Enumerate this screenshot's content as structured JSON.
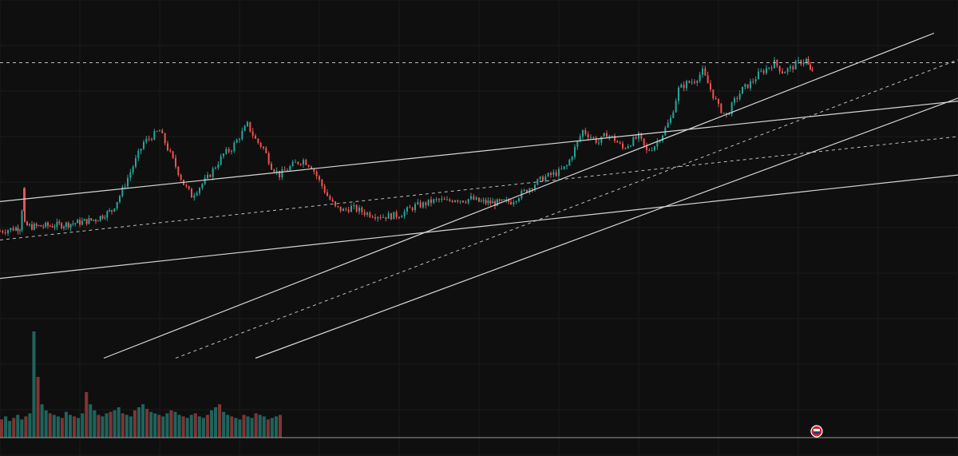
{
  "chart_data": {
    "type": "candlestick",
    "title": "",
    "xlabel": "",
    "ylabel": "",
    "grid": true,
    "legend": "none",
    "y_scale": "log",
    "colors": {
      "background": "#0f0f0f",
      "up": "#26a69a",
      "down": "#ef5350",
      "lines": "#d6d6d6",
      "volume_up": "#1f6e66",
      "volume_down": "#8c3a3a"
    },
    "x_range": [
      0,
      1000
    ],
    "y_range": [
      0,
      100
    ],
    "price_path": [
      [
        0,
        38
      ],
      [
        10,
        38.5
      ],
      [
        20,
        39
      ],
      [
        25,
        39.2
      ],
      [
        30,
        52
      ],
      [
        31,
        40
      ],
      [
        40,
        39.5
      ],
      [
        60,
        39.8
      ],
      [
        80,
        40.2
      ],
      [
        100,
        41
      ],
      [
        120,
        42
      ],
      [
        140,
        45
      ],
      [
        150,
        50
      ],
      [
        160,
        56
      ],
      [
        170,
        62
      ],
      [
        180,
        68
      ],
      [
        190,
        70
      ],
      [
        200,
        72
      ],
      [
        210,
        66
      ],
      [
        220,
        60
      ],
      [
        230,
        54
      ],
      [
        240,
        50
      ],
      [
        250,
        53
      ],
      [
        260,
        56
      ],
      [
        270,
        60
      ],
      [
        280,
        64
      ],
      [
        290,
        66
      ],
      [
        300,
        70
      ],
      [
        310,
        74
      ],
      [
        320,
        69
      ],
      [
        330,
        66
      ],
      [
        340,
        60
      ],
      [
        350,
        57
      ],
      [
        360,
        59
      ],
      [
        370,
        61
      ],
      [
        380,
        62
      ],
      [
        390,
        60
      ],
      [
        400,
        55
      ],
      [
        410,
        50
      ],
      [
        420,
        46
      ],
      [
        430,
        45
      ],
      [
        440,
        46
      ],
      [
        450,
        45
      ],
      [
        460,
        44
      ],
      [
        470,
        43.5
      ],
      [
        480,
        43
      ],
      [
        490,
        43.2
      ],
      [
        500,
        43.5
      ],
      [
        510,
        45
      ],
      [
        520,
        46.5
      ],
      [
        530,
        47
      ],
      [
        540,
        48
      ],
      [
        550,
        48.5
      ],
      [
        560,
        48
      ],
      [
        570,
        49
      ],
      [
        580,
        48.5
      ],
      [
        590,
        49
      ],
      [
        600,
        48
      ],
      [
        620,
        47.5
      ],
      [
        640,
        48
      ],
      [
        650,
        50
      ],
      [
        660,
        52
      ],
      [
        670,
        54
      ],
      [
        680,
        56
      ],
      [
        690,
        57
      ],
      [
        700,
        58
      ],
      [
        710,
        60
      ],
      [
        720,
        66
      ],
      [
        730,
        72
      ],
      [
        740,
        70
      ],
      [
        750,
        68
      ],
      [
        760,
        71
      ],
      [
        770,
        69
      ],
      [
        780,
        66
      ],
      [
        790,
        68
      ],
      [
        800,
        70
      ],
      [
        810,
        65
      ],
      [
        820,
        67
      ],
      [
        830,
        71
      ],
      [
        840,
        76
      ],
      [
        850,
        86
      ],
      [
        860,
        88
      ],
      [
        870,
        89
      ],
      [
        880,
        92
      ],
      [
        890,
        86
      ],
      [
        900,
        80
      ],
      [
        910,
        77
      ],
      [
        920,
        82
      ],
      [
        930,
        86
      ],
      [
        940,
        88
      ],
      [
        950,
        91
      ],
      [
        960,
        93
      ],
      [
        970,
        95
      ],
      [
        980,
        92
      ],
      [
        990,
        93
      ],
      [
        1000,
        95
      ],
      [
        1010,
        96
      ],
      [
        1015,
        92
      ],
      [
        1020,
        93
      ]
    ],
    "volume": [
      12,
      14,
      11,
      13,
      15,
      12,
      14,
      16,
      70,
      40,
      22,
      18,
      16,
      15,
      14,
      13,
      17,
      15,
      14,
      13,
      16,
      30,
      22,
      18,
      15,
      14,
      16,
      17,
      18,
      20,
      16,
      15,
      14,
      18,
      20,
      22,
      19,
      17,
      16,
      15,
      14,
      16,
      18,
      17,
      15,
      14,
      13,
      15,
      16,
      14,
      13,
      15,
      18,
      20,
      22,
      17,
      15,
      14,
      13,
      12,
      15,
      14,
      13,
      16,
      15,
      14,
      12,
      13,
      14,
      15
    ],
    "trendlines": [
      {
        "from": [
          0,
          48
        ],
        "to": [
          1200,
          82
        ],
        "style": "solid"
      },
      {
        "from": [
          0,
          35
        ],
        "to": [
          1200,
          70
        ],
        "style": "dashed"
      },
      {
        "from": [
          0,
          22
        ],
        "to": [
          1200,
          57
        ],
        "style": "solid"
      },
      {
        "from": [
          130,
          -5
        ],
        "to": [
          1170,
          105
        ],
        "style": "solid"
      },
      {
        "from": [
          220,
          -5
        ],
        "to": [
          1200,
          96
        ],
        "style": "dashed"
      },
      {
        "from": [
          320,
          -5
        ],
        "to": [
          1200,
          83
        ],
        "style": "solid"
      }
    ],
    "horizontal_levels": [
      {
        "value": 95,
        "style": "dashed"
      }
    ]
  },
  "badge": {
    "icon": "flag-icon",
    "color": "#c62828"
  }
}
